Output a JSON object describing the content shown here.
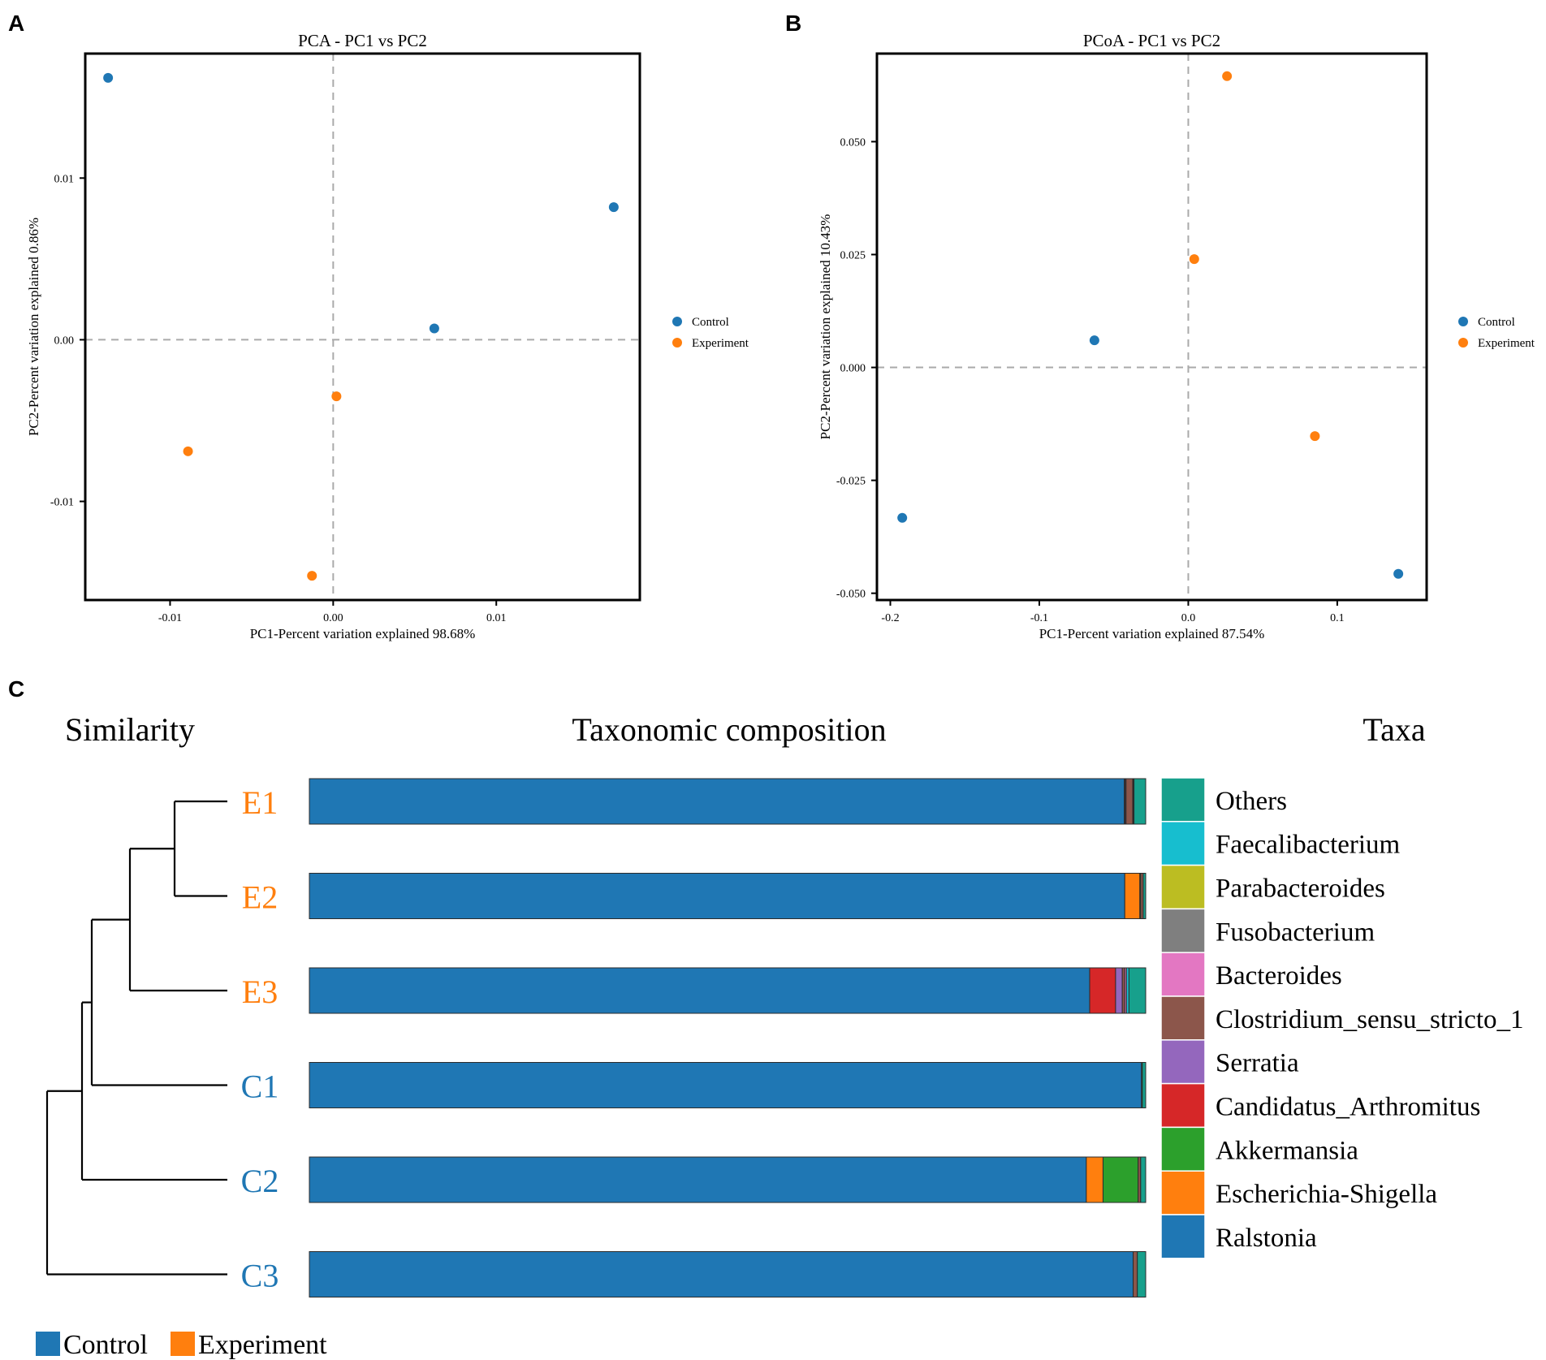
{
  "panels": {
    "a": "A",
    "b": "B",
    "c": "C"
  },
  "colors": {
    "control": "#1f77b4",
    "experiment": "#ff7f0e"
  },
  "chart_data": [
    {
      "id": "pca",
      "type": "scatter",
      "title": "PCA - PC1 vs PC2",
      "xlabel": "PC1-Percent variation explained 98.68%",
      "ylabel": "PC2-Percent variation explained 0.86%",
      "xlim": [
        -0.0152,
        0.0188
      ],
      "ylim": [
        -0.0161,
        0.0177
      ],
      "xticks": [
        {
          "value": -0.01,
          "label": "-0.01"
        },
        {
          "value": 0.0,
          "label": "0.00"
        },
        {
          "value": 0.01,
          "label": "0.01"
        }
      ],
      "yticks": [
        {
          "value": 0.01,
          "label": "0.01"
        },
        {
          "value": 0.0,
          "label": "0.00"
        },
        {
          "value": -0.01,
          "label": "-0.01"
        }
      ],
      "legend": {
        "position": "right",
        "labels": [
          "Control",
          "Experiment"
        ]
      },
      "series": [
        {
          "name": "Control",
          "points": [
            [
              -0.0138,
              0.0162
            ],
            [
              0.0172,
              0.0082
            ],
            [
              0.0062,
              0.0007
            ]
          ]
        },
        {
          "name": "Experiment",
          "points": [
            [
              0.0002,
              -0.0035
            ],
            [
              -0.0089,
              -0.0069
            ],
            [
              -0.0013,
              -0.0146
            ]
          ]
        }
      ]
    },
    {
      "id": "pcoa",
      "type": "scatter",
      "title": "PCoA - PC1 vs PC2",
      "xlabel": "PC1-Percent variation explained 87.54%",
      "ylabel": "PC2-Percent variation explained 10.43%",
      "xlim": [
        -0.209,
        0.16
      ],
      "ylim": [
        -0.0515,
        0.0695
      ],
      "xticks": [
        {
          "value": -0.2,
          "label": "-0.2"
        },
        {
          "value": -0.1,
          "label": "-0.1"
        },
        {
          "value": 0.0,
          "label": "0.0"
        },
        {
          "value": 0.1,
          "label": "0.1"
        }
      ],
      "yticks": [
        {
          "value": 0.05,
          "label": "0.050"
        },
        {
          "value": 0.025,
          "label": "0.025"
        },
        {
          "value": 0.0,
          "label": "0.000"
        },
        {
          "value": -0.025,
          "label": "-0.025"
        },
        {
          "value": -0.05,
          "label": "-0.050"
        }
      ],
      "legend": {
        "position": "right",
        "labels": [
          "Control",
          "Experiment"
        ]
      },
      "series": [
        {
          "name": "Control",
          "points": [
            [
              -0.063,
              0.006
            ],
            [
              -0.192,
              -0.0333
            ],
            [
              0.141,
              -0.0457
            ]
          ]
        },
        {
          "name": "Experiment",
          "points": [
            [
              0.026,
              0.0645
            ],
            [
              0.004,
              0.024
            ],
            [
              0.085,
              -0.0152
            ]
          ]
        }
      ]
    },
    {
      "id": "taxa",
      "type": "bar",
      "orientation": "horizontal",
      "stacked": true,
      "title": "Taxonomic composition",
      "left_title": "Similarity",
      "legend_title": "Taxa",
      "samples": [
        {
          "label": "E1",
          "group": "Experiment",
          "values": {
            "Ralstonia": 97.45,
            "Escherichia-Shigella": 0.0,
            "Akkermansia": 0.0,
            "Candidatus_Arthromitus": 0.1,
            "Serratia": 0.1,
            "Clostridium_sensu_stricto_1": 0.8,
            "Bacteroides": 0.0,
            "Fusobacterium": 0.0,
            "Parabacteroides": 0.05,
            "Faecalibacterium": 0.1,
            "Others": 1.4
          }
        },
        {
          "label": "E2",
          "group": "Experiment",
          "values": {
            "Ralstonia": 97.5,
            "Escherichia-Shigella": 1.8,
            "Akkermansia": 0.1,
            "Candidatus_Arthromitus": 0.0,
            "Serratia": 0.0,
            "Clostridium_sensu_stricto_1": 0.3,
            "Bacteroides": 0.0,
            "Fusobacterium": 0.0,
            "Parabacteroides": 0.0,
            "Faecalibacterium": 0.0,
            "Others": 0.3
          }
        },
        {
          "label": "E3",
          "group": "Experiment",
          "values": {
            "Ralstonia": 93.3,
            "Escherichia-Shigella": 0.0,
            "Akkermansia": 0.0,
            "Candidatus_Arthromitus": 3.1,
            "Serratia": 0.8,
            "Clostridium_sensu_stricto_1": 0.3,
            "Bacteroides": 0.2,
            "Fusobacterium": 0.0,
            "Parabacteroides": 0.0,
            "Faecalibacterium": 0.3,
            "Others": 2.0
          }
        },
        {
          "label": "C1",
          "group": "Control",
          "values": {
            "Ralstonia": 99.5,
            "Escherichia-Shigella": 0.0,
            "Akkermansia": 0.1,
            "Candidatus_Arthromitus": 0.0,
            "Serratia": 0.0,
            "Clostridium_sensu_stricto_1": 0.0,
            "Bacteroides": 0.0,
            "Fusobacterium": 0.0,
            "Parabacteroides": 0.0,
            "Faecalibacterium": 0.0,
            "Others": 0.4
          }
        },
        {
          "label": "C2",
          "group": "Control",
          "values": {
            "Ralstonia": 92.9,
            "Escherichia-Shigella": 2.0,
            "Akkermansia": 4.2,
            "Candidatus_Arthromitus": 0.0,
            "Serratia": 0.0,
            "Clostridium_sensu_stricto_1": 0.3,
            "Bacteroides": 0.0,
            "Fusobacterium": 0.0,
            "Parabacteroides": 0.0,
            "Faecalibacterium": 0.0,
            "Others": 0.6
          }
        },
        {
          "label": "C3",
          "group": "Control",
          "values": {
            "Ralstonia": 98.5,
            "Escherichia-Shigella": 0.0,
            "Akkermansia": 0.0,
            "Candidatus_Arthromitus": 0.0,
            "Serratia": 0.0,
            "Clostridium_sensu_stricto_1": 0.5,
            "Bacteroides": 0.0,
            "Fusobacterium": 0.0,
            "Parabacteroides": 0.0,
            "Faecalibacterium": 0.0,
            "Others": 1.0
          }
        }
      ],
      "taxa": [
        {
          "name": "Others",
          "color": "#17a08c"
        },
        {
          "name": "Faecalibacterium",
          "color": "#17becf"
        },
        {
          "name": "Parabacteroides",
          "color": "#bcbd22"
        },
        {
          "name": "Fusobacterium",
          "color": "#7f7f7f"
        },
        {
          "name": "Bacteroides",
          "color": "#e377c2"
        },
        {
          "name": "Clostridium_sensu_stricto_1",
          "color": "#8c564b"
        },
        {
          "name": "Serratia",
          "color": "#9467bd"
        },
        {
          "name": "Candidatus_Arthromitus",
          "color": "#d62728"
        },
        {
          "name": "Akkermansia",
          "color": "#2ca02c"
        },
        {
          "name": "Escherichia-Shigella",
          "color": "#ff7f0e"
        },
        {
          "name": "Ralstonia",
          "color": "#1f77b4"
        }
      ],
      "dendrogram": {
        "merges": [
          {
            "id": "m1",
            "left": "E1",
            "right": "E2"
          },
          {
            "id": "m2",
            "left": "m1",
            "right": "E3"
          },
          {
            "id": "m3",
            "left": "m2",
            "right": "C1"
          },
          {
            "id": "m4",
            "left": "m3",
            "right": "C2"
          },
          {
            "id": "m5",
            "left": "m4",
            "right": "C3"
          }
        ]
      },
      "group_legend": [
        "Control",
        "Experiment"
      ]
    }
  ]
}
